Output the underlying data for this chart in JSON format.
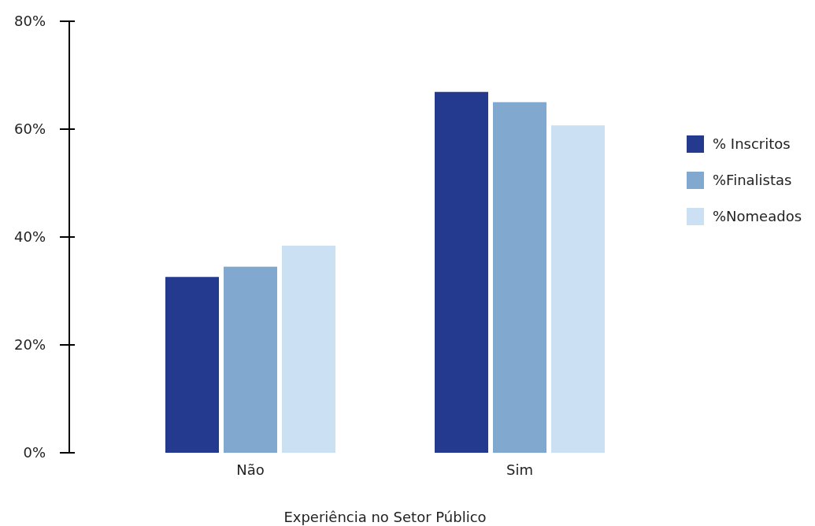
{
  "chart_data": {
    "type": "bar",
    "xlabel": "Experiência no Setor Público",
    "categories": [
      "Não",
      "Sim"
    ],
    "series": [
      {
        "name": "% Inscritos",
        "color": "#233a8e",
        "values": [
          32.6,
          66.9
        ]
      },
      {
        "name": "%Finalistas",
        "color": "#81a9cf",
        "values": [
          34.5,
          65.0
        ]
      },
      {
        "name": "%Nomeados",
        "color": "#cce0f4",
        "values": [
          38.4,
          60.7
        ]
      }
    ],
    "ylim": [
      0,
      80
    ],
    "yticks": [
      {
        "value": 0,
        "label": "0%"
      },
      {
        "value": 20,
        "label": "20%"
      },
      {
        "value": 40,
        "label": "40%"
      },
      {
        "value": 60,
        "label": "60%"
      },
      {
        "value": 80,
        "label": "80%"
      }
    ],
    "grid": false,
    "legend": "right"
  }
}
